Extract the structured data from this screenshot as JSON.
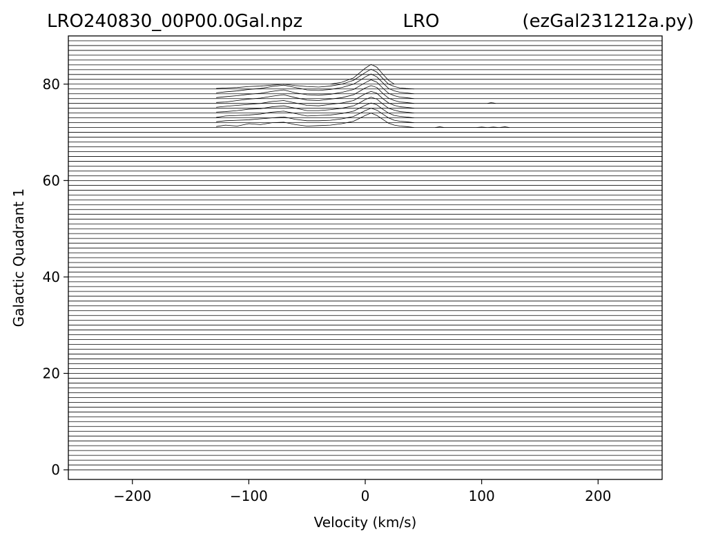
{
  "chart_data": {
    "type": "line",
    "title_left": "LRO240830_00P00.0Gal.npz",
    "title_center": "LRO",
    "title_right": "(ezGal231212a.py)",
    "xlabel": "Velocity (km/s)",
    "ylabel": "Galactic Quadrant 1",
    "xlim": [
      -255,
      255
    ],
    "ylim": [
      -2,
      90
    ],
    "xticks": [
      -200,
      -100,
      0,
      100,
      200
    ],
    "xtick_labels": [
      "−200",
      "−100",
      "0",
      "100",
      "200"
    ],
    "yticks": [
      0,
      20,
      40,
      60,
      80
    ],
    "ytick_labels": [
      "0",
      "20",
      "40",
      "60",
      "80"
    ],
    "grid": false,
    "legend": "none",
    "line_color": "#000000",
    "baselines": {
      "start": 0,
      "end": 89,
      "step": 1
    },
    "series": [
      {
        "baseline": 71,
        "x": [
          -128,
          -120,
          -110,
          -100,
          -90,
          -80,
          -70,
          -60,
          -50,
          -40,
          -30,
          -20,
          -10,
          -5,
          0,
          5,
          10,
          15,
          20,
          25,
          30,
          35,
          42
        ],
        "y": [
          71.2,
          71.5,
          71.3,
          71.8,
          71.6,
          72.0,
          72.1,
          71.6,
          71.3,
          71.4,
          71.5,
          71.8,
          72.3,
          72.9,
          73.5,
          74.0,
          73.5,
          72.7,
          71.9,
          71.5,
          71.3,
          71.2,
          71.0
        ]
      },
      {
        "baseline": 72,
        "x": [
          -128,
          -120,
          -110,
          -100,
          -90,
          -80,
          -70,
          -60,
          -50,
          -40,
          -30,
          -20,
          -10,
          -5,
          0,
          5,
          10,
          15,
          20,
          25,
          30,
          35,
          42
        ],
        "y": [
          72.2,
          72.4,
          72.5,
          72.6,
          72.8,
          73.0,
          73.2,
          72.7,
          72.4,
          72.4,
          72.5,
          72.8,
          73.3,
          73.9,
          74.5,
          75.0,
          74.6,
          73.8,
          73.0,
          72.5,
          72.3,
          72.2,
          72.0
        ]
      },
      {
        "baseline": 73,
        "x": [
          -128,
          -120,
          -110,
          -100,
          -90,
          -80,
          -70,
          -60,
          -50,
          -40,
          -30,
          -20,
          -10,
          -5,
          0,
          5,
          10,
          15,
          20,
          25,
          30,
          35,
          42
        ],
        "y": [
          73.1,
          73.4,
          73.5,
          73.6,
          73.8,
          74.2,
          74.4,
          73.9,
          73.4,
          73.5,
          73.6,
          73.9,
          74.4,
          75.0,
          75.6,
          76.1,
          75.7,
          74.8,
          74.0,
          73.5,
          73.3,
          73.2,
          73.0
        ]
      },
      {
        "baseline": 74,
        "x": [
          -128,
          -120,
          -110,
          -100,
          -90,
          -80,
          -70,
          -60,
          -50,
          -40,
          -30,
          -20,
          -10,
          -5,
          0,
          5,
          10,
          15,
          20,
          25,
          30,
          35,
          42
        ],
        "y": [
          74.2,
          74.3,
          74.5,
          74.8,
          74.9,
          75.3,
          75.5,
          75.0,
          74.5,
          74.5,
          74.7,
          75.0,
          75.5,
          76.1,
          76.8,
          77.3,
          76.9,
          75.9,
          75.0,
          74.6,
          74.3,
          74.2,
          74.0
        ]
      },
      {
        "baseline": 75,
        "x": [
          -128,
          -120,
          -110,
          -100,
          -90,
          -80,
          -70,
          -60,
          -50,
          -40,
          -30,
          -20,
          -10,
          -5,
          0,
          5,
          10,
          15,
          20,
          25,
          30,
          35,
          42
        ],
        "y": [
          75.2,
          75.4,
          75.6,
          75.8,
          76.0,
          76.4,
          76.6,
          76.1,
          75.6,
          75.5,
          75.8,
          76.1,
          76.6,
          77.3,
          78.0,
          78.5,
          78.1,
          77.0,
          76.1,
          75.6,
          75.3,
          75.2,
          75.0
        ]
      },
      {
        "baseline": 76,
        "x": [
          -128,
          -120,
          -110,
          -100,
          -90,
          -80,
          -70,
          -60,
          -50,
          -40,
          -30,
          -20,
          -10,
          -5,
          0,
          5,
          10,
          15,
          20,
          25,
          30,
          35,
          42
        ],
        "y": [
          76.2,
          76.3,
          76.6,
          76.9,
          77.1,
          77.5,
          77.8,
          77.2,
          76.7,
          76.6,
          76.9,
          77.2,
          77.8,
          78.5,
          79.2,
          79.7,
          79.3,
          78.1,
          77.1,
          76.6,
          76.3,
          76.2,
          76.0
        ]
      },
      {
        "baseline": 77,
        "x": [
          -128,
          -120,
          -110,
          -100,
          -90,
          -80,
          -70,
          -60,
          -50,
          -40,
          -30,
          -20,
          -10,
          -5,
          0,
          5,
          10,
          15,
          20,
          25,
          30,
          35,
          42
        ],
        "y": [
          77.2,
          77.4,
          77.6,
          77.9,
          78.1,
          78.5,
          78.8,
          78.2,
          77.8,
          77.7,
          77.9,
          78.3,
          78.9,
          79.6,
          80.3,
          80.9,
          80.4,
          79.2,
          78.1,
          77.6,
          77.3,
          77.2,
          77.0
        ]
      },
      {
        "baseline": 78,
        "x": [
          -128,
          -120,
          -110,
          -100,
          -90,
          -80,
          -70,
          -60,
          -50,
          -40,
          -30,
          -20,
          -10,
          -5,
          0,
          5,
          10,
          15,
          20,
          25,
          30,
          35,
          42
        ],
        "y": [
          78.2,
          78.4,
          78.6,
          78.9,
          79.1,
          79.5,
          79.8,
          79.3,
          78.8,
          78.7,
          78.9,
          79.3,
          80.0,
          80.7,
          81.5,
          82.1,
          81.5,
          80.3,
          79.1,
          78.6,
          78.3,
          78.2,
          78.0
        ]
      },
      {
        "baseline": 79,
        "x": [
          -128,
          -120,
          -110,
          -100,
          -90,
          -80,
          -70,
          -60,
          -50,
          -40,
          -30,
          -20,
          -10,
          -5,
          0,
          5,
          10,
          15,
          20,
          25,
          30,
          35,
          42
        ],
        "y": [
          79.1,
          79.2,
          79.3,
          79.5,
          79.6,
          79.8,
          80.0,
          79.7,
          79.5,
          79.4,
          79.6,
          80.0,
          80.8,
          81.6,
          82.4,
          83.1,
          82.5,
          81.2,
          80.0,
          79.5,
          79.2,
          79.1,
          79.0
        ]
      },
      {
        "baseline": 80,
        "x": [
          -30,
          -20,
          -10,
          -5,
          0,
          5,
          10,
          15,
          20,
          25
        ],
        "y": [
          80.0,
          80.4,
          81.3,
          82.3,
          83.3,
          84.1,
          83.5,
          82.1,
          80.8,
          80.0
        ]
      },
      {
        "baseline": 71,
        "x": [
          60,
          64,
          68,
          95,
          100,
          105,
          110,
          115,
          120,
          124
        ],
        "y": [
          71.0,
          71.15,
          71.0,
          71.0,
          71.1,
          71.0,
          71.1,
          71.0,
          71.15,
          71.0
        ]
      },
      {
        "baseline": 76,
        "x": [
          105,
          108,
          110,
          112
        ],
        "y": [
          76.0,
          76.15,
          76.1,
          76.0
        ]
      }
    ]
  }
}
